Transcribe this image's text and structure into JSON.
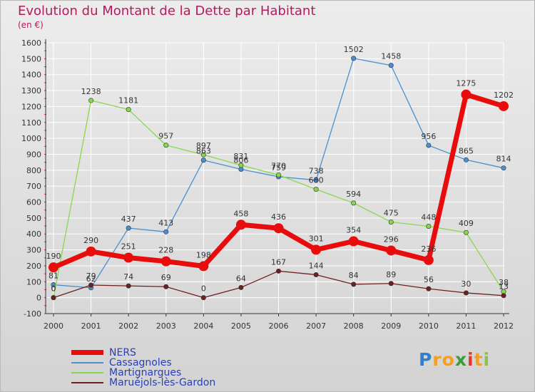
{
  "colors": {
    "title": "#b51a5e",
    "grid": "#ffffff",
    "axis": "#333333"
  },
  "chart_data": {
    "type": "line",
    "title": "Evolution du Montant de la Dette par Habitant",
    "subtitle": "(en €)",
    "xlabel": "",
    "ylabel": "",
    "categories": [
      "2000",
      "2001",
      "2002",
      "2003",
      "2004",
      "2005",
      "2006",
      "2007",
      "2008",
      "2009",
      "2010",
      "2011",
      "2012"
    ],
    "ylim": [
      -100,
      1600
    ],
    "yticks": [
      -100,
      0,
      100,
      200,
      300,
      400,
      500,
      600,
      700,
      800,
      900,
      1000,
      1100,
      1200,
      1300,
      1400,
      1500,
      1600
    ],
    "grid": true,
    "legend_position": "bottom-left",
    "series": [
      {
        "name": "NERS",
        "color": "#e80c0c",
        "values": [
          190,
          290,
          251,
          228,
          198,
          458,
          436,
          301,
          354,
          296,
          236,
          1275,
          1202
        ],
        "labels": [
          "190",
          "290",
          "251",
          "228",
          "198",
          "458",
          "436",
          "301",
          "354",
          "296",
          "236",
          "1275",
          "1202"
        ]
      },
      {
        "name": "Cassagnoles",
        "color": "#4a8fcf",
        "values": [
          81,
          62,
          437,
          413,
          863,
          806,
          759,
          738,
          1502,
          1458,
          956,
          865,
          814
        ],
        "labels": [
          "81",
          "62",
          "437",
          "413",
          "863",
          "806",
          "759",
          "738",
          "1502",
          "1458",
          "956",
          "865",
          "814"
        ]
      },
      {
        "name": "Martignargues",
        "color": "#88d84d",
        "values": [
          0,
          1238,
          1181,
          957,
          897,
          831,
          770,
          680,
          594,
          475,
          448,
          409,
          38
        ],
        "labels": [
          "0",
          "1238",
          "1181",
          "957",
          "897",
          "831",
          "770",
          "680",
          "594",
          "475",
          "448",
          "409",
          "38"
        ]
      },
      {
        "name": "Maruéjols-lès-Gardon",
        "color": "#6e1f1f",
        "values": [
          0,
          79,
          74,
          69,
          0,
          64,
          167,
          144,
          84,
          89,
          56,
          30,
          13
        ],
        "labels": [
          "0",
          "79",
          "74",
          "69",
          "0",
          "64",
          "167",
          "144",
          "84",
          "89",
          "56",
          "30",
          "13"
        ]
      }
    ]
  },
  "logo": {
    "letters": [
      "P",
      "r",
      "o",
      "x",
      "i",
      "t",
      "i"
    ],
    "colors": [
      "#2f7fd1",
      "#f2a11f",
      "#f2a11f",
      "#3a9b3a",
      "#e2392a",
      "#f2a11f",
      "#8bc24a"
    ]
  }
}
